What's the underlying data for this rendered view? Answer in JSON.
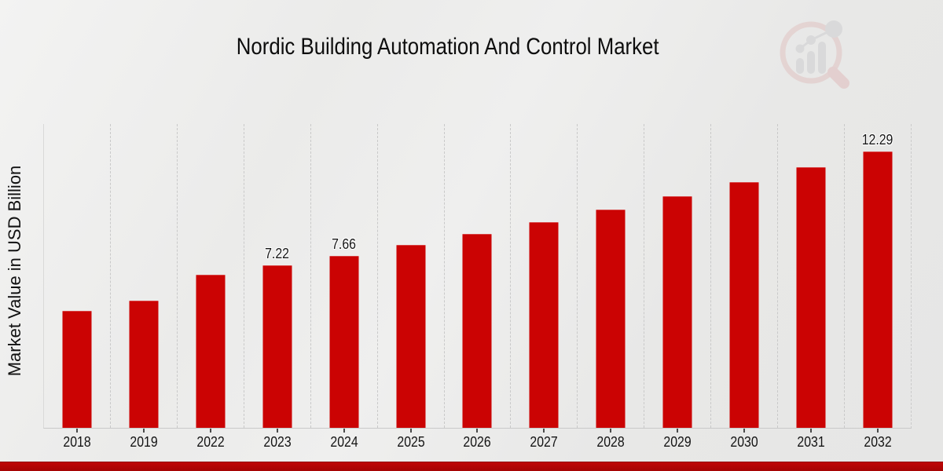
{
  "title": "Nordic Building Automation And Control Market",
  "ylabel": "Market Value in USD Billion",
  "chart_data": {
    "type": "bar",
    "title": "Nordic Building Automation And Control Market",
    "xlabel": "",
    "ylabel": "Market Value in USD Billion",
    "categories": [
      "2018",
      "2019",
      "2022",
      "2023",
      "2024",
      "2025",
      "2026",
      "2027",
      "2028",
      "2029",
      "2030",
      "2031",
      "2032"
    ],
    "values": [
      5.2,
      5.67,
      6.8,
      7.22,
      7.66,
      8.13,
      8.62,
      9.15,
      9.71,
      10.3,
      10.93,
      11.6,
      12.29
    ],
    "data_labels": [
      "",
      "",
      "",
      "7.22",
      "7.66",
      "",
      "",
      "",
      "",
      "",
      "",
      "",
      "12.29"
    ],
    "ylim": [
      0,
      13.5
    ],
    "bar_color": "#cb0303",
    "gridlines": "vertical-dashed",
    "gridline_color": "#c9c9c9",
    "legend": "none",
    "background_color": "#ebebea",
    "footer_band_color": "#b00505"
  },
  "logo": {
    "name": "market-research-future-watermark",
    "circle_color": "#d98585",
    "bars_color": "#9d9da5"
  }
}
